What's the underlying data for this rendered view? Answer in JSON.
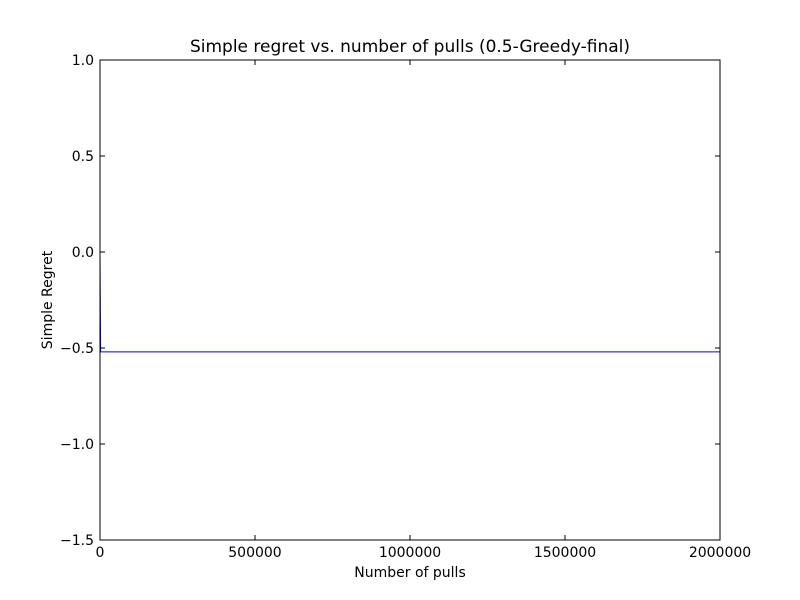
{
  "chart_data": {
    "type": "line",
    "title": "Simple regret vs. number of pulls (0.5-Greedy-final)",
    "xlabel": "Number of pulls",
    "ylabel": "Simple Regret",
    "xlim": [
      0,
      2000000
    ],
    "ylim": [
      -1.5,
      1.0
    ],
    "xticks": [
      0,
      500000,
      1000000,
      1500000,
      2000000
    ],
    "xtick_labels": [
      "0",
      "500000",
      "1000000",
      "1500000",
      "2000000"
    ],
    "yticks": [
      1.0,
      0.5,
      0.0,
      -0.5,
      -1.0,
      -1.5
    ],
    "ytick_labels": [
      "1.0",
      "0.5",
      "0.0",
      "−0.5",
      "−1.0",
      "−1.5"
    ],
    "grid": false,
    "series": [
      {
        "color": "#0000ff",
        "x": [
          0,
          2000,
          4000,
          2000000
        ],
        "y": [
          0.0,
          -0.52,
          -0.52,
          -0.52
        ]
      }
    ]
  }
}
